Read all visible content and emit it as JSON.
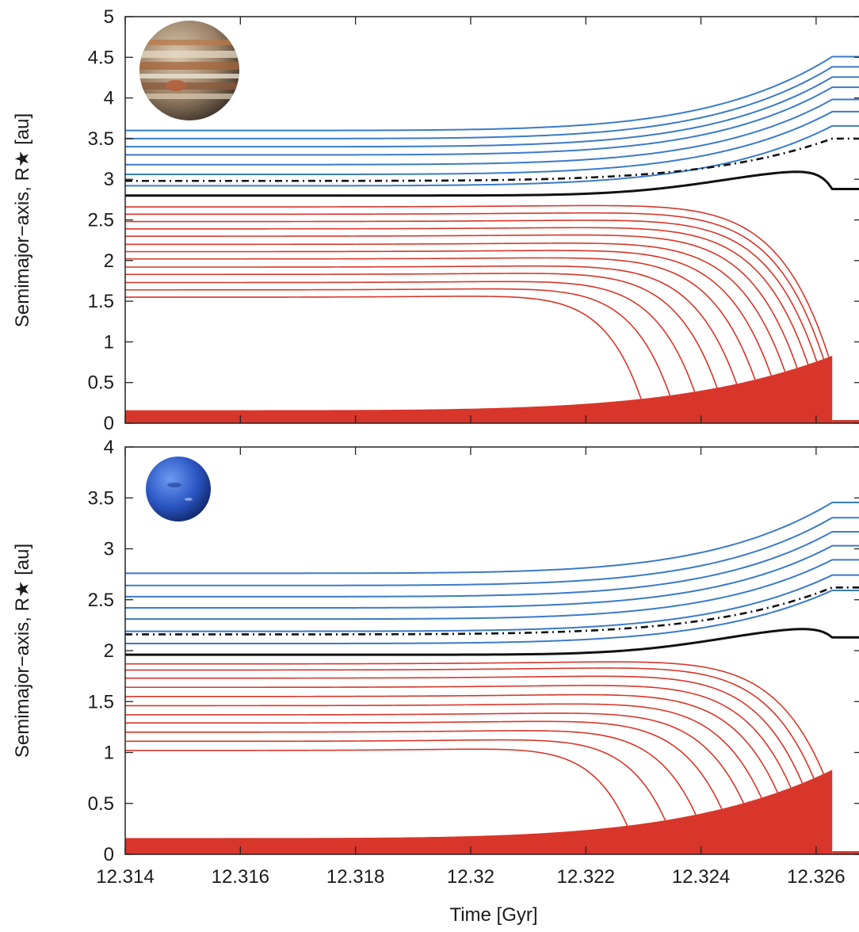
{
  "chart_data": [
    {
      "type": "line",
      "panel": "top",
      "icon": "jupiter-planet-icon",
      "xlim": [
        12.314,
        12.3268
      ],
      "ylim": [
        0,
        5
      ],
      "xticks": [
        12.314,
        12.316,
        12.318,
        12.32,
        12.322,
        12.324,
        12.326
      ],
      "yticks": [
        0,
        0.5,
        1,
        1.5,
        2,
        2.5,
        3,
        3.5,
        4,
        4.5,
        5
      ],
      "ylabel": "Semimajor−axis, R★ [au]",
      "xlabel": "",
      "t_end": 12.32628,
      "stellar_radius": {
        "start": 0.16,
        "end": 0.83
      },
      "critical_orbit": {
        "start": 2.98,
        "end": 3.5
      },
      "boundary_orbit": {
        "start": 2.8,
        "peak": 3.12,
        "end": 2.88
      },
      "survivors": [
        2.92,
        3.06,
        3.18,
        3.3,
        3.4,
        3.5,
        3.6
      ],
      "engulfed": [
        {
          "a0": 1.55,
          "t_engulf": 12.32296
        },
        {
          "a0": 1.64,
          "t_engulf": 12.32346
        },
        {
          "a0": 1.73,
          "t_engulf": 12.32389
        },
        {
          "a0": 1.83,
          "t_engulf": 12.32428
        },
        {
          "a0": 1.92,
          "t_engulf": 12.32462
        },
        {
          "a0": 2.02,
          "t_engulf": 12.32494
        },
        {
          "a0": 2.11,
          "t_engulf": 12.32522
        },
        {
          "a0": 2.2,
          "t_engulf": 12.32546
        },
        {
          "a0": 2.3,
          "t_engulf": 12.32567
        },
        {
          "a0": 2.39,
          "t_engulf": 12.32586
        },
        {
          "a0": 2.48,
          "t_engulf": 12.32601
        },
        {
          "a0": 2.57,
          "t_engulf": 12.32613
        },
        {
          "a0": 2.66,
          "t_engulf": 12.32622
        }
      ],
      "colors": {
        "survivor": "#3a7bc8",
        "engulfed": "#d8362a",
        "star": "#d8362a",
        "boundary": "#111111"
      }
    },
    {
      "type": "line",
      "panel": "bottom",
      "icon": "neptune-planet-icon",
      "xlim": [
        12.314,
        12.3268
      ],
      "ylim": [
        0,
        4
      ],
      "xticks": [
        12.314,
        12.316,
        12.318,
        12.32,
        12.322,
        12.324,
        12.326
      ],
      "xticklabels": [
        "12.314",
        "12.316",
        "12.318",
        "12.32",
        "12.322",
        "12.324",
        "12.326"
      ],
      "yticks": [
        0,
        0.5,
        1,
        1.5,
        2,
        2.5,
        3,
        3.5,
        4
      ],
      "ylabel": "Semimajor−axis, R★ [au]",
      "xlabel": "Time [Gyr]",
      "t_end": 12.32628,
      "stellar_radius": {
        "start": 0.16,
        "end": 0.83
      },
      "critical_orbit": {
        "start": 2.16,
        "end": 2.62
      },
      "boundary_orbit": {
        "start": 1.96,
        "peak": 2.23,
        "end": 2.13
      },
      "survivors": [
        2.07,
        2.19,
        2.31,
        2.42,
        2.53,
        2.64,
        2.76
      ],
      "engulfed": [
        {
          "a0": 1.02,
          "t_engulf": 12.32272
        },
        {
          "a0": 1.11,
          "t_engulf": 12.32338
        },
        {
          "a0": 1.2,
          "t_engulf": 12.32391
        },
        {
          "a0": 1.29,
          "t_engulf": 12.32436
        },
        {
          "a0": 1.37,
          "t_engulf": 12.32474
        },
        {
          "a0": 1.46,
          "t_engulf": 12.32505
        },
        {
          "a0": 1.55,
          "t_engulf": 12.32533
        },
        {
          "a0": 1.64,
          "t_engulf": 12.32556
        },
        {
          "a0": 1.73,
          "t_engulf": 12.32576
        },
        {
          "a0": 1.81,
          "t_engulf": 12.32596
        },
        {
          "a0": 1.87,
          "t_engulf": 12.32613
        }
      ],
      "colors": {
        "survivor": "#3a7bc8",
        "engulfed": "#d8362a",
        "star": "#d8362a",
        "boundary": "#111111"
      }
    }
  ]
}
